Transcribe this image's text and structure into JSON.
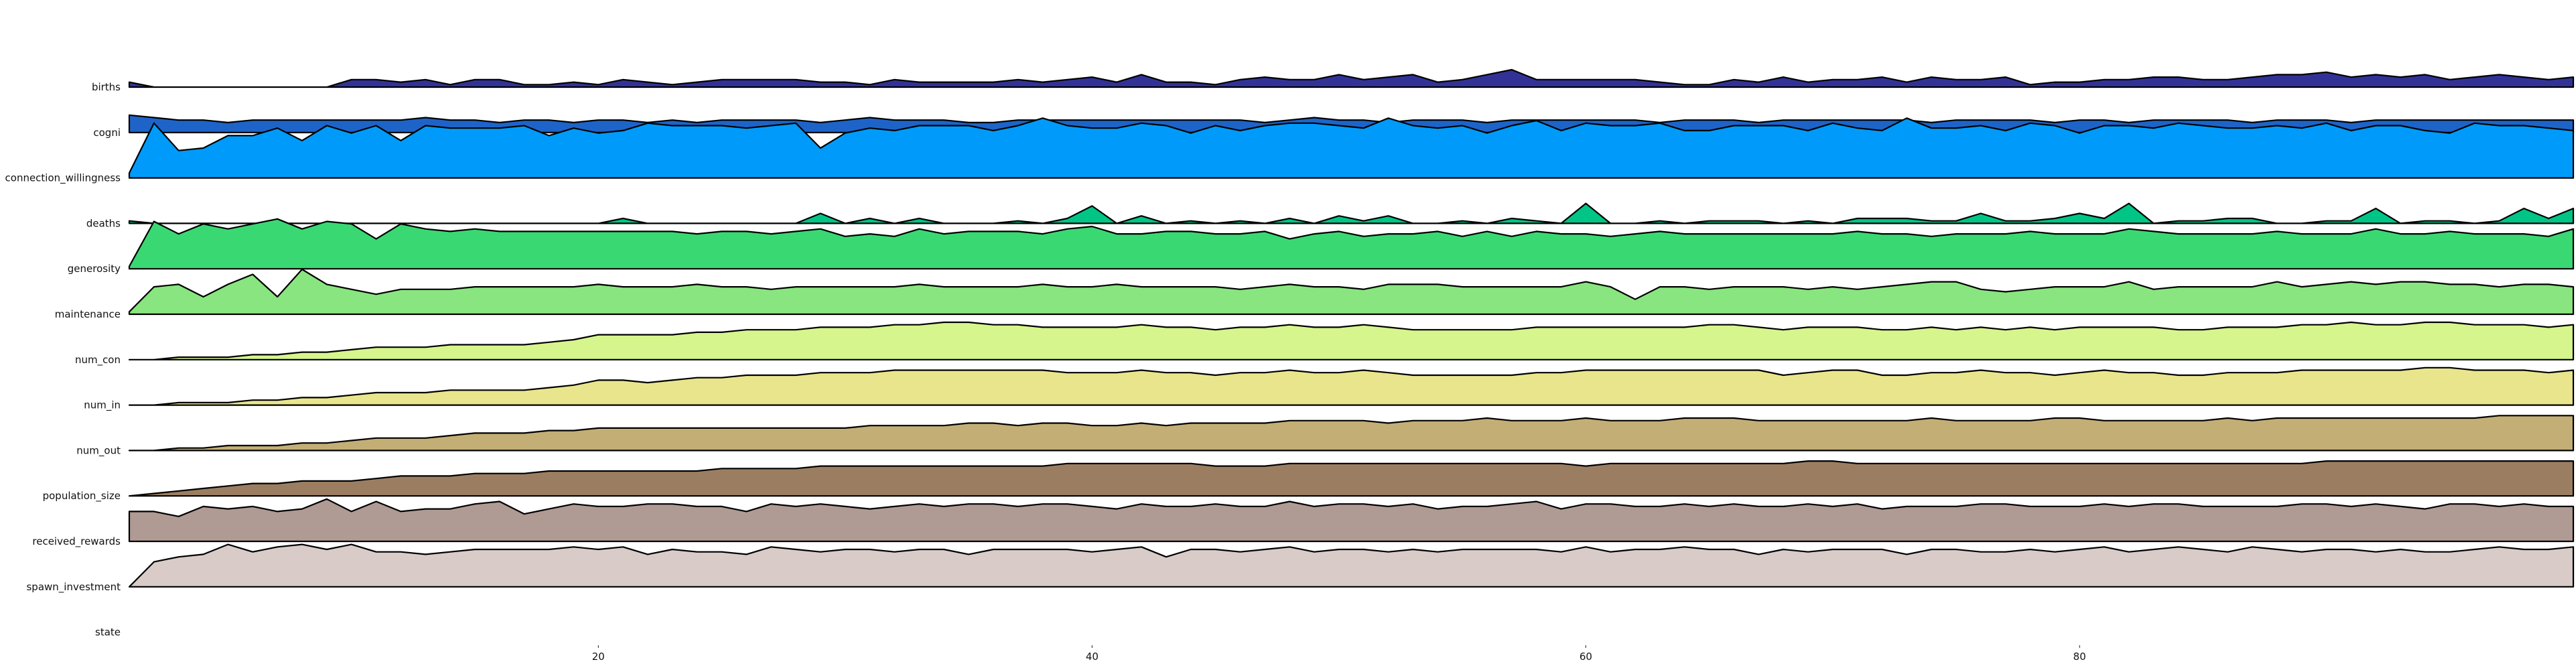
{
  "chart_data": {
    "type": "area",
    "subtype": "ridgeline",
    "x": [
      1,
      2,
      3,
      4,
      5,
      6,
      7,
      8,
      9,
      10,
      11,
      12,
      13,
      14,
      15,
      16,
      17,
      18,
      19,
      20,
      21,
      22,
      23,
      24,
      25,
      26,
      27,
      28,
      29,
      30,
      31,
      32,
      33,
      34,
      35,
      36,
      37,
      38,
      39,
      40,
      41,
      42,
      43,
      44,
      45,
      46,
      47,
      48,
      49,
      50,
      51,
      52,
      53,
      54,
      55,
      56,
      57,
      58,
      59,
      60,
      61,
      62,
      63,
      64,
      65,
      66,
      67,
      68,
      69,
      70,
      71,
      72,
      73,
      74,
      75,
      76,
      77,
      78,
      79,
      80,
      81,
      82,
      83,
      84,
      85,
      86,
      87,
      88,
      89,
      90,
      91,
      92,
      93,
      94,
      95,
      96,
      97,
      98,
      99,
      100
    ],
    "xlim": [
      1,
      100
    ],
    "xticks": [
      20,
      40,
      60,
      80
    ],
    "xtick_labels": [
      "20",
      "40",
      "60",
      "80"
    ],
    "xlabel": "",
    "ylabel": "",
    "title": "",
    "grid": false,
    "legend": "none",
    "series": [
      {
        "name": "births",
        "color": "#323296",
        "values": [
          2,
          0,
          0,
          0,
          0,
          0,
          0,
          0,
          0,
          3,
          3,
          2,
          3,
          1,
          3,
          3,
          1,
          1,
          2,
          1,
          3,
          2,
          1,
          2,
          3,
          3,
          3,
          3,
          2,
          2,
          1,
          3,
          2,
          2,
          2,
          2,
          3,
          2,
          3,
          4,
          2,
          5,
          2,
          2,
          1,
          3,
          4,
          3,
          3,
          5,
          3,
          4,
          5,
          2,
          3,
          5,
          7,
          3,
          3,
          3,
          3,
          3,
          2,
          1,
          1,
          3,
          2,
          4,
          2,
          3,
          3,
          4,
          2,
          4,
          3,
          3,
          4,
          1,
          2,
          2,
          3,
          3,
          4,
          4,
          3,
          3,
          4,
          5,
          5,
          6,
          4,
          5,
          4,
          5,
          3,
          4,
          5,
          4,
          3,
          4
        ]
      },
      {
        "name": "cogni",
        "color": "#1e64c8",
        "values": [
          7,
          6,
          5,
          5,
          4,
          5,
          5,
          5,
          5,
          5,
          5,
          5,
          6,
          5,
          5,
          4,
          5,
          5,
          4,
          5,
          5,
          4,
          5,
          4,
          5,
          5,
          5,
          5,
          4,
          5,
          6,
          5,
          5,
          5,
          4,
          4,
          5,
          5,
          5,
          5,
          5,
          5,
          5,
          5,
          5,
          5,
          4,
          5,
          6,
          5,
          5,
          4,
          5,
          5,
          5,
          4,
          5,
          5,
          5,
          5,
          5,
          5,
          4,
          5,
          5,
          5,
          4,
          5,
          5,
          5,
          5,
          5,
          5,
          4,
          5,
          5,
          5,
          5,
          4,
          5,
          5,
          4,
          5,
          5,
          5,
          5,
          4,
          5,
          5,
          5,
          4,
          5,
          5,
          5,
          5,
          5,
          5,
          5,
          5,
          5
        ]
      },
      {
        "name": "connection_willingness",
        "color": "#009bfa",
        "values": [
          2,
          22,
          11,
          12,
          17,
          17,
          20,
          15,
          21,
          18,
          21,
          15,
          21,
          20,
          20,
          20,
          21,
          17,
          20,
          18,
          19,
          22,
          21,
          21,
          21,
          20,
          21,
          22,
          12,
          18,
          20,
          19,
          21,
          21,
          21,
          19,
          21,
          24,
          21,
          20,
          20,
          22,
          21,
          18,
          21,
          19,
          21,
          22,
          22,
          21,
          20,
          24,
          21,
          20,
          21,
          18,
          21,
          23,
          19,
          22,
          21,
          21,
          22,
          19,
          19,
          21,
          21,
          21,
          19,
          22,
          20,
          19,
          24,
          20,
          20,
          21,
          19,
          22,
          21,
          18,
          21,
          21,
          20,
          22,
          21,
          20,
          20,
          21,
          20,
          22,
          19,
          21,
          21,
          19,
          18,
          22,
          21,
          21,
          20,
          19
        ]
      },
      {
        "name": "deaths",
        "color": "#00c587",
        "values": [
          1,
          0,
          0,
          0,
          0,
          0,
          0,
          0,
          0,
          0,
          0,
          0,
          0,
          0,
          0,
          0,
          0,
          0,
          0,
          0,
          2,
          0,
          0,
          0,
          0,
          0,
          0,
          0,
          4,
          0,
          2,
          0,
          2,
          0,
          0,
          0,
          1,
          0,
          2,
          7,
          0,
          3,
          0,
          1,
          0,
          1,
          0,
          2,
          0,
          3,
          1,
          3,
          0,
          0,
          1,
          0,
          2,
          1,
          0,
          8,
          0,
          0,
          1,
          0,
          1,
          1,
          1,
          0,
          1,
          0,
          2,
          2,
          2,
          1,
          1,
          4,
          1,
          1,
          2,
          4,
          2,
          8,
          0,
          1,
          1,
          2,
          2,
          0,
          0,
          1,
          1,
          6,
          0,
          1,
          1,
          0,
          1,
          6,
          2,
          6
        ]
      },
      {
        "name": "generosity",
        "color": "#3ad872",
        "values": [
          1,
          19,
          14,
          18,
          16,
          18,
          20,
          16,
          19,
          18,
          12,
          18,
          16,
          15,
          16,
          15,
          15,
          15,
          15,
          15,
          15,
          15,
          15,
          14,
          15,
          15,
          14,
          15,
          16,
          13,
          14,
          13,
          16,
          14,
          15,
          15,
          15,
          14,
          16,
          17,
          14,
          14,
          15,
          15,
          14,
          14,
          15,
          12,
          14,
          15,
          13,
          14,
          14,
          15,
          13,
          15,
          13,
          15,
          14,
          14,
          13,
          14,
          15,
          14,
          14,
          14,
          14,
          14,
          14,
          14,
          15,
          14,
          14,
          13,
          14,
          14,
          14,
          15,
          14,
          14,
          14,
          16,
          15,
          14,
          14,
          14,
          14,
          15,
          14,
          14,
          14,
          16,
          14,
          14,
          15,
          14,
          14,
          14,
          13,
          16
        ]
      },
      {
        "name": "maintenance",
        "color": "#89e57f",
        "values": [
          1,
          11,
          12,
          7,
          12,
          16,
          7,
          18,
          12,
          10,
          8,
          10,
          10,
          10,
          11,
          11,
          11,
          11,
          11,
          12,
          11,
          11,
          11,
          12,
          11,
          11,
          10,
          11,
          11,
          11,
          11,
          11,
          12,
          11,
          11,
          11,
          11,
          12,
          11,
          11,
          12,
          11,
          11,
          11,
          11,
          10,
          11,
          12,
          11,
          11,
          10,
          12,
          12,
          12,
          11,
          11,
          11,
          11,
          11,
          13,
          11,
          6,
          11,
          11,
          10,
          11,
          11,
          11,
          10,
          11,
          10,
          11,
          12,
          13,
          13,
          10,
          9,
          10,
          11,
          11,
          11,
          13,
          10,
          11,
          11,
          11,
          11,
          13,
          11,
          12,
          13,
          12,
          13,
          13,
          12,
          12,
          11,
          12,
          12,
          11
        ]
      },
      {
        "name": "num_con",
        "color": "#d6f58d",
        "values": [
          0,
          0,
          1,
          1,
          1,
          2,
          2,
          3,
          3,
          4,
          5,
          5,
          5,
          6,
          6,
          6,
          6,
          7,
          8,
          10,
          10,
          10,
          10,
          11,
          11,
          12,
          12,
          12,
          13,
          13,
          13,
          14,
          14,
          15,
          15,
          14,
          14,
          13,
          13,
          13,
          13,
          14,
          13,
          13,
          12,
          13,
          13,
          14,
          13,
          13,
          14,
          13,
          12,
          12,
          12,
          12,
          12,
          13,
          13,
          13,
          13,
          13,
          13,
          13,
          14,
          14,
          13,
          12,
          13,
          13,
          13,
          12,
          12,
          13,
          12,
          13,
          12,
          13,
          12,
          13,
          13,
          13,
          13,
          12,
          12,
          13,
          13,
          13,
          14,
          14,
          15,
          14,
          14,
          15,
          15,
          14,
          14,
          14,
          13,
          14
        ]
      },
      {
        "name": "num_in",
        "color": "#e9e58d",
        "values": [
          0,
          0,
          1,
          1,
          1,
          2,
          2,
          3,
          3,
          4,
          5,
          5,
          5,
          6,
          6,
          6,
          6,
          7,
          8,
          10,
          10,
          9,
          10,
          11,
          11,
          12,
          12,
          12,
          13,
          13,
          13,
          14,
          14,
          14,
          14,
          14,
          14,
          14,
          13,
          13,
          13,
          14,
          13,
          13,
          12,
          13,
          13,
          14,
          13,
          13,
          14,
          13,
          12,
          12,
          12,
          12,
          12,
          13,
          13,
          14,
          14,
          14,
          14,
          14,
          14,
          14,
          14,
          12,
          13,
          14,
          14,
          12,
          12,
          13,
          13,
          14,
          13,
          13,
          12,
          13,
          14,
          13,
          13,
          12,
          12,
          13,
          13,
          13,
          14,
          14,
          14,
          14,
          14,
          15,
          15,
          14,
          14,
          14,
          13,
          14
        ]
      },
      {
        "name": "num_out",
        "color": "#c3ae76",
        "values": [
          0,
          0,
          1,
          1,
          2,
          2,
          2,
          3,
          3,
          4,
          5,
          5,
          5,
          6,
          7,
          7,
          7,
          8,
          8,
          9,
          9,
          9,
          9,
          9,
          9,
          9,
          9,
          9,
          9,
          9,
          10,
          10,
          10,
          10,
          11,
          11,
          10,
          11,
          11,
          10,
          10,
          11,
          10,
          11,
          11,
          11,
          11,
          12,
          12,
          12,
          12,
          11,
          12,
          12,
          12,
          13,
          12,
          12,
          12,
          13,
          12,
          12,
          12,
          13,
          13,
          13,
          12,
          12,
          12,
          12,
          12,
          12,
          12,
          13,
          12,
          12,
          12,
          12,
          13,
          13,
          12,
          12,
          12,
          12,
          12,
          13,
          12,
          13,
          13,
          13,
          13,
          13,
          13,
          13,
          13,
          13,
          14,
          14,
          14,
          14
        ]
      },
      {
        "name": "population_size",
        "color": "#9b7e62",
        "values": [
          0,
          1,
          2,
          3,
          4,
          5,
          5,
          6,
          6,
          6,
          7,
          8,
          8,
          8,
          9,
          9,
          9,
          10,
          10,
          10,
          10,
          10,
          10,
          10,
          11,
          11,
          11,
          11,
          12,
          12,
          12,
          12,
          12,
          12,
          12,
          12,
          12,
          12,
          13,
          13,
          13,
          13,
          13,
          13,
          12,
          12,
          12,
          13,
          13,
          13,
          13,
          13,
          13,
          13,
          13,
          13,
          13,
          13,
          13,
          12,
          13,
          13,
          13,
          13,
          13,
          13,
          13,
          13,
          14,
          14,
          13,
          13,
          13,
          13,
          13,
          13,
          13,
          13,
          13,
          13,
          13,
          13,
          13,
          13,
          13,
          13,
          13,
          13,
          13,
          14,
          14,
          14,
          14,
          14,
          14,
          14,
          14,
          14,
          14,
          14
        ]
      },
      {
        "name": "received_rewards",
        "color": "#b09a94",
        "values": [
          12,
          12,
          10,
          14,
          13,
          14,
          12,
          13,
          17,
          12,
          16,
          12,
          13,
          13,
          15,
          16,
          11,
          13,
          15,
          14,
          14,
          15,
          15,
          14,
          14,
          12,
          15,
          14,
          15,
          14,
          13,
          14,
          15,
          14,
          15,
          15,
          14,
          15,
          15,
          14,
          13,
          15,
          14,
          14,
          15,
          14,
          14,
          16,
          14,
          15,
          15,
          14,
          15,
          13,
          14,
          14,
          15,
          16,
          13,
          15,
          15,
          14,
          14,
          15,
          14,
          15,
          14,
          14,
          15,
          14,
          15,
          13,
          14,
          14,
          14,
          15,
          15,
          14,
          14,
          14,
          15,
          14,
          15,
          15,
          14,
          14,
          14,
          14,
          15,
          15,
          14,
          15,
          14,
          13,
          15,
          15,
          14,
          15,
          14,
          14
        ]
      },
      {
        "name": "spawn_investment",
        "color": "#d8cbc8",
        "values": [
          0,
          10,
          12,
          13,
          17,
          14,
          16,
          17,
          15,
          17,
          14,
          14,
          13,
          14,
          15,
          15,
          15,
          15,
          16,
          15,
          16,
          13,
          15,
          14,
          14,
          13,
          16,
          15,
          14,
          15,
          15,
          14,
          15,
          15,
          13,
          15,
          15,
          15,
          15,
          14,
          15,
          16,
          12,
          15,
          15,
          14,
          15,
          16,
          14,
          15,
          15,
          14,
          15,
          14,
          15,
          15,
          15,
          15,
          14,
          16,
          14,
          15,
          15,
          16,
          15,
          15,
          13,
          15,
          14,
          15,
          15,
          15,
          13,
          15,
          15,
          14,
          14,
          15,
          14,
          15,
          16,
          14,
          15,
          16,
          15,
          14,
          16,
          15,
          14,
          15,
          15,
          14,
          15,
          14,
          14,
          15,
          16,
          15,
          15,
          16
        ]
      }
    ],
    "row_labels": [
      "births",
      "cogni",
      "connection_willingness",
      "deaths",
      "generosity",
      "maintenance",
      "num_con",
      "num_in",
      "num_out",
      "population_size",
      "received_rewards",
      "spawn_investment",
      "state"
    ]
  }
}
